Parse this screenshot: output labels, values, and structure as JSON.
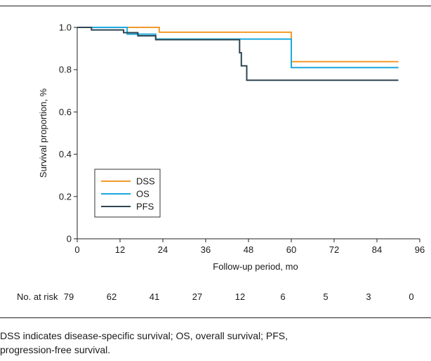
{
  "chart_data": {
    "type": "line",
    "title": "",
    "xlabel": "Follow-up period, mo",
    "ylabel": "Survival proportion, %",
    "xlim": [
      0,
      96
    ],
    "ylim": [
      0,
      1.0
    ],
    "x_ticks": [
      "0",
      "12",
      "24",
      "36",
      "48",
      "60",
      "72",
      "84",
      "96"
    ],
    "y_ticks": [
      "0",
      "0.2",
      "0.4",
      "0.6",
      "0.8",
      "1.0"
    ],
    "grid": false,
    "legend_position": "bottom-left",
    "series": [
      {
        "name": "DSS",
        "color": "#f39a2b",
        "step_points": [
          [
            0,
            1.0
          ],
          [
            23,
            1.0
          ],
          [
            23,
            0.977
          ],
          [
            60,
            0.977
          ],
          [
            60,
            0.838
          ],
          [
            90,
            0.838
          ]
        ]
      },
      {
        "name": "OS",
        "color": "#1ba8de",
        "step_points": [
          [
            0,
            1.0
          ],
          [
            14,
            1.0
          ],
          [
            14,
            0.968
          ],
          [
            22,
            0.968
          ],
          [
            22,
            0.945
          ],
          [
            60,
            0.945
          ],
          [
            60,
            0.81
          ],
          [
            90,
            0.81
          ]
        ]
      },
      {
        "name": "PFS",
        "color": "#2e4552",
        "step_points": [
          [
            0,
            1.0
          ],
          [
            4,
            1.0
          ],
          [
            4,
            0.988
          ],
          [
            13,
            0.988
          ],
          [
            13,
            0.975
          ],
          [
            17,
            0.975
          ],
          [
            17,
            0.96
          ],
          [
            22,
            0.96
          ],
          [
            22,
            0.942
          ],
          [
            45.5,
            0.942
          ],
          [
            45.5,
            0.88
          ],
          [
            46,
            0.88
          ],
          [
            46,
            0.818
          ],
          [
            47.5,
            0.818
          ],
          [
            47.5,
            0.75
          ],
          [
            90,
            0.75
          ]
        ]
      }
    ],
    "at_risk": {
      "label": "No. at risk",
      "times": [
        0,
        12,
        24,
        36,
        48,
        60,
        72,
        84,
        96
      ],
      "counts": [
        "79",
        "62",
        "41",
        "27",
        "12",
        "6",
        "5",
        "3",
        "0"
      ]
    }
  },
  "caption": {
    "line1": "DSS indicates disease-specific survival; OS, overall survival; PFS,",
    "line2": "progression-free survival."
  }
}
